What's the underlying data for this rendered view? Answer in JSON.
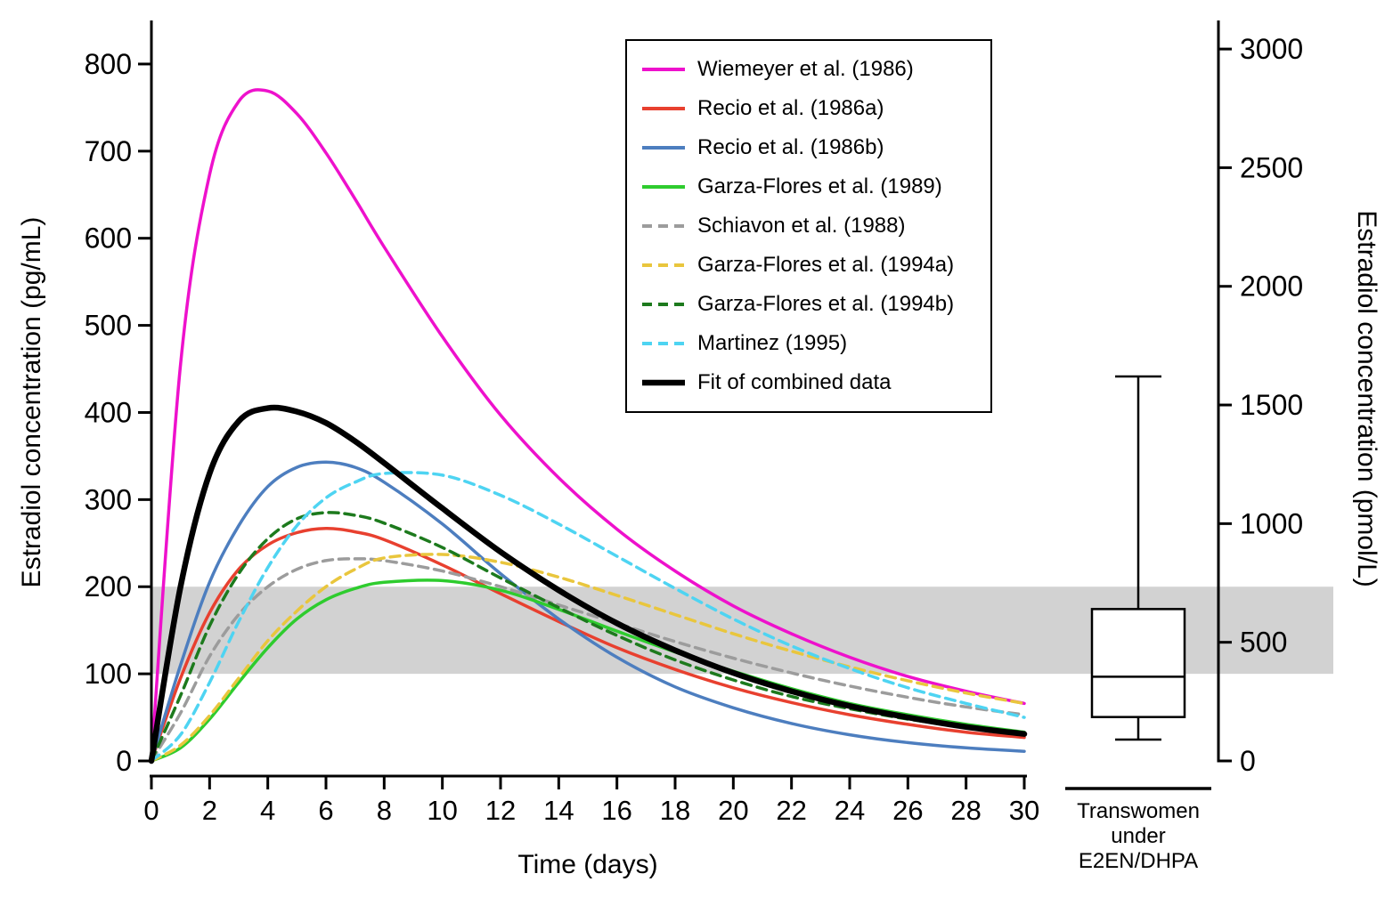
{
  "chart_data": {
    "type": "line",
    "title": "",
    "xlabel": "Time (days)",
    "ylabel_left": "Estradiol concentration (pg/mL)",
    "ylabel_right": "Estradiol concentration (pmol/L)",
    "xlim": [
      0,
      30
    ],
    "xticks": [
      0,
      2,
      4,
      6,
      8,
      10,
      12,
      14,
      16,
      18,
      20,
      22,
      24,
      26,
      28,
      30
    ],
    "ylim_left": [
      0,
      850
    ],
    "yticks_left": [
      0,
      100,
      200,
      300,
      400,
      500,
      600,
      700,
      800
    ],
    "ylim_right": [
      0,
      3120
    ],
    "yticks_right": [
      0,
      500,
      1000,
      1500,
      2000,
      2500,
      3000
    ],
    "pmol_per_pg": 3.671,
    "grid": "off",
    "legend_position": "top-center",
    "reference_band": {
      "low": 100,
      "high": 200,
      "color": "#d2d2d2"
    },
    "x": [
      0,
      1,
      2,
      3,
      4,
      5,
      6,
      7,
      8,
      10,
      12,
      14,
      16,
      18,
      20,
      22,
      24,
      26,
      28,
      30
    ],
    "series": [
      {
        "name": "Wiemeyer et al. (1986)",
        "color": "#ee11cc",
        "style": "solid",
        "width": 3.5,
        "values": [
          0,
          455,
          673,
          757,
          769,
          743,
          698,
          645,
          590,
          487,
          397,
          325,
          266,
          218,
          178,
          146,
          119,
          97,
          80,
          66
        ]
      },
      {
        "name": "Recio et al. (1986a)",
        "color": "#e8402f",
        "style": "solid",
        "width": 3.5,
        "values": [
          0,
          95,
          170,
          220,
          248,
          262,
          267,
          263,
          254,
          225,
          192,
          160,
          130,
          105,
          84,
          67,
          53,
          42,
          33,
          27
        ]
      },
      {
        "name": "Recio et al. (1986b)",
        "color": "#4d7ebf",
        "style": "solid",
        "width": 3.5,
        "values": [
          0,
          110,
          205,
          270,
          315,
          337,
          343,
          337,
          320,
          272,
          215,
          163,
          119,
          85,
          61,
          43,
          30,
          21,
          15,
          11
        ]
      },
      {
        "name": "Garza-Flores et al. (1989)",
        "color": "#2ecc2e",
        "style": "solid",
        "width": 3.5,
        "values": [
          0,
          15,
          48,
          90,
          130,
          163,
          185,
          198,
          205,
          207,
          196,
          174,
          149,
          125,
          103,
          83,
          66,
          53,
          42,
          33
        ]
      },
      {
        "name": "Schiavon et al. (1988)",
        "color": "#9c9c9c",
        "style": "dashed",
        "width": 3.5,
        "values": [
          0,
          55,
          120,
          168,
          200,
          220,
          230,
          232,
          230,
          218,
          200,
          179,
          158,
          137,
          118,
          101,
          86,
          73,
          62,
          53
        ]
      },
      {
        "name": "Garza-Flores et al. (1994a)",
        "color": "#e9c63d",
        "style": "dashed",
        "width": 3.5,
        "values": [
          0,
          18,
          52,
          95,
          138,
          172,
          200,
          220,
          233,
          237,
          228,
          211,
          190,
          168,
          146,
          126,
          108,
          92,
          78,
          66
        ]
      },
      {
        "name": "Garza-Flores et al. (1994b)",
        "color": "#1d7a1d",
        "style": "dashed",
        "width": 3.5,
        "values": [
          0,
          75,
          155,
          215,
          255,
          278,
          285,
          282,
          273,
          245,
          210,
          176,
          144,
          116,
          93,
          74,
          60,
          48,
          39,
          32
        ]
      },
      {
        "name": "Martinez (1995)",
        "color": "#4ed4f2",
        "style": "dashed",
        "width": 3.5,
        "values": [
          0,
          30,
          90,
          160,
          222,
          270,
          302,
          320,
          330,
          328,
          305,
          272,
          235,
          198,
          163,
          132,
          106,
          84,
          66,
          50
        ]
      },
      {
        "name": "Fit of combined data",
        "color": "#000000",
        "style": "solid",
        "width": 6.5,
        "values": [
          0,
          200,
          330,
          390,
          405,
          401,
          388,
          367,
          342,
          290,
          240,
          196,
          158,
          127,
          101,
          80,
          63,
          50,
          39,
          31
        ]
      }
    ],
    "boxplot": {
      "label_lines": [
        "Transwomen",
        "under",
        "E2EN/DHPA"
      ],
      "unit": "pmol/L",
      "whisker_low": 90,
      "q1": 185,
      "median": 355,
      "q3": 640,
      "whisker_high": 1620
    }
  }
}
